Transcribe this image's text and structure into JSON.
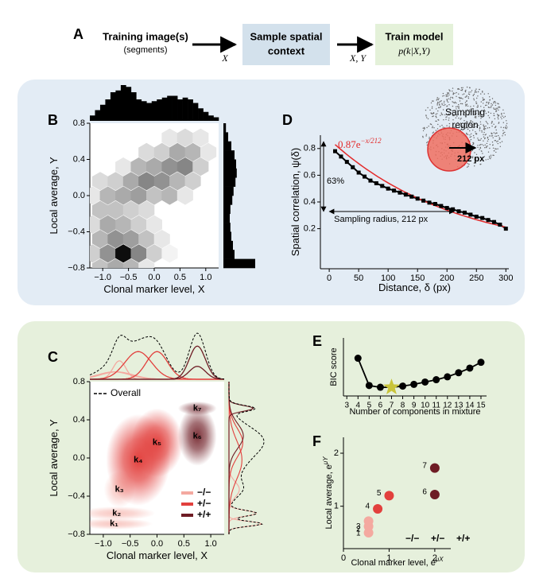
{
  "diagram": {
    "panel": "A",
    "input": "Training image(s)",
    "input_note": "(segments)",
    "edge1": "X",
    "step1": [
      "Sample spatial",
      "context"
    ],
    "edge2": "X, Y",
    "step2": "Train model",
    "step2_formula": "p(k|X,Y)"
  },
  "chart_data": [
    {
      "type": "hexbin",
      "panel": "B",
      "x_label": "Clonal marker level, X",
      "y_label": "Local average, Y",
      "color": "#000000",
      "xlim": [
        -1.25,
        1.25
      ],
      "ylim": [
        -0.8,
        0.8
      ],
      "xticks": [
        {
          "value": -1,
          "label": "−1.0"
        },
        {
          "value": -0.5,
          "label": "−0.5"
        },
        {
          "value": 0,
          "label": "0.0"
        },
        0.5,
        {
          "value": 1,
          "label": "1.0"
        }
      ],
      "yticks": [
        {
          "value": -0.8,
          "label": "−0.8"
        },
        {
          "value": -0.4,
          "label": "−0.4"
        },
        {
          "value": 0,
          "label": "0.0"
        },
        0.4,
        0.8
      ],
      "cells": {
        "x": [
          -1.05,
          -0.75,
          -0.45,
          -0.15,
          -1.2,
          -0.9,
          -0.6,
          -0.3,
          0,
          0.3,
          -1.05,
          -0.75,
          -0.45,
          -0.15,
          0.15,
          -1.2,
          -0.9,
          -0.6,
          -0.3,
          0,
          -1.05,
          -0.75,
          -0.45,
          -0.15,
          -1.2,
          -0.9,
          -0.6,
          -0.3,
          0,
          0.3,
          0.6,
          -1.05,
          -0.75,
          -0.45,
          -0.15,
          0.15,
          0.45,
          0.75,
          -0.6,
          -0.3,
          0,
          0.3,
          0.6,
          0.9,
          -0.15,
          0.15,
          0.45,
          0.75,
          1.05,
          0.3,
          0.6,
          0.9
        ],
        "y": [
          -0.8,
          -0.8,
          -0.8,
          -0.8,
          -0.64,
          -0.64,
          -0.64,
          -0.64,
          -0.64,
          -0.64,
          -0.48,
          -0.48,
          -0.48,
          -0.48,
          -0.48,
          -0.32,
          -0.32,
          -0.32,
          -0.32,
          -0.32,
          -0.16,
          -0.16,
          -0.16,
          -0.16,
          0,
          0,
          0,
          0,
          0,
          0,
          0,
          0.16,
          0.16,
          0.16,
          0.16,
          0.16,
          0.16,
          0.16,
          0.32,
          0.32,
          0.32,
          0.32,
          0.32,
          0.32,
          0.48,
          0.48,
          0.48,
          0.48,
          0.48,
          0.64,
          0.64,
          0.64
        ],
        "values": [
          0.25,
          0.35,
          0.3,
          0.1,
          0.2,
          0.45,
          1,
          0.5,
          0.2,
          0.05,
          0.3,
          0.45,
          0.4,
          0.25,
          0.1,
          0.15,
          0.35,
          0.3,
          0.2,
          0.1,
          0.25,
          0.25,
          0.2,
          0.15,
          0.1,
          0.3,
          0.35,
          0.4,
          0.25,
          0.3,
          0.1,
          0.15,
          0.2,
          0.35,
          0.5,
          0.45,
          0.3,
          0.2,
          0.1,
          0.3,
          0.35,
          0.45,
          0.5,
          0.2,
          0.15,
          0.2,
          0.35,
          0.3,
          0.1,
          0.1,
          0.15,
          0.1
        ]
      },
      "x_hist": {
        "bins": [
          -1.25,
          -1.15,
          -1.05,
          -0.95,
          -0.85,
          -0.75,
          -0.65,
          -0.55,
          -0.45,
          -0.35,
          -0.25,
          -0.15,
          -0.05,
          0.05,
          0.15,
          0.25,
          0.35,
          0.45,
          0.55,
          0.65,
          0.75,
          0.85,
          0.95,
          1.05,
          1.15,
          1.25
        ],
        "counts": [
          0.15,
          0.3,
          0.45,
          0.6,
          0.8,
          0.85,
          1,
          0.95,
          0.8,
          0.6,
          0.55,
          0.5,
          0.55,
          0.6,
          0.65,
          0.7,
          0.7,
          0.6,
          0.65,
          0.6,
          0.5,
          0.35,
          0.25,
          0.15,
          0.1
        ]
      },
      "y_hist": {
        "bins": [
          -0.8,
          -0.7,
          -0.6,
          -0.5,
          -0.4,
          -0.3,
          -0.2,
          -0.1,
          0,
          0.1,
          0.2,
          0.3,
          0.4,
          0.5,
          0.6,
          0.7,
          0.8
        ],
        "counts": [
          1,
          0.35,
          0.3,
          0.25,
          0.22,
          0.2,
          0.22,
          0.28,
          0.32,
          0.38,
          0.42,
          0.4,
          0.35,
          0.25,
          0.15,
          0.08
        ]
      }
    },
    {
      "type": "line",
      "panel": "D",
      "x_label": "Distance, δ  (px)",
      "y_label": "Spatial correlation, ψ(δ)",
      "color": "#000000",
      "xlim": [
        -15,
        305
      ],
      "ylim": [
        -0.1,
        0.9
      ],
      "xticks": [
        0,
        50,
        100,
        150,
        200,
        250,
        300
      ],
      "yticks": [
        0.2,
        0.4,
        0.6,
        0.8
      ],
      "x": [
        10,
        20,
        30,
        40,
        50,
        60,
        70,
        80,
        90,
        100,
        110,
        120,
        130,
        140,
        150,
        160,
        170,
        180,
        190,
        200,
        210,
        220,
        230,
        240,
        250,
        260,
        270,
        280,
        290,
        300
      ],
      "values": [
        0.78,
        0.74,
        0.7,
        0.66,
        0.62,
        0.59,
        0.56,
        0.54,
        0.52,
        0.5,
        0.485,
        0.47,
        0.455,
        0.44,
        0.425,
        0.41,
        0.395,
        0.385,
        0.37,
        0.355,
        0.345,
        0.33,
        0.32,
        0.305,
        0.29,
        0.28,
        0.265,
        0.25,
        0.23,
        0.2
      ],
      "fit": {
        "amplitude": 0.87,
        "scale": 212,
        "color": "#e32b2b",
        "label": "0.87e",
        "label_exponent": "−x/212"
      },
      "annotations": {
        "drop": "63%",
        "radius": "Sampling radius, 212 px",
        "region": [
          "Sampling",
          "region"
        ],
        "region_radius": "212 px"
      }
    },
    {
      "type": "mixture",
      "panel": "C",
      "x_label": "Clonal marker level, X",
      "y_label": "Local average, Y",
      "xlim": [
        -1.25,
        1.25
      ],
      "ylim": [
        -0.8,
        0.8
      ],
      "xticks": [
        {
          "value": -1,
          "label": "−1.0"
        },
        {
          "value": -0.5,
          "label": "−0.5"
        },
        {
          "value": 0,
          "label": "0.0"
        },
        0.5,
        {
          "value": 1,
          "label": "1.0"
        }
      ],
      "yticks": [
        {
          "value": -0.8,
          "label": "−0.8"
        },
        {
          "value": -0.4,
          "label": "−0.4"
        },
        {
          "value": 0,
          "label": "0.0"
        },
        0.4,
        0.8
      ],
      "groups": [
        {
          "name": "−/−",
          "color": "#f4a9a0"
        },
        {
          "name": "+/−",
          "color": "#e2403d"
        },
        {
          "name": "+/+",
          "color": "#6e1c24"
        }
      ],
      "overall": {
        "name": "Overall",
        "color": "#000000"
      },
      "components": [
        {
          "name": "k₁",
          "x": -0.8,
          "y": -0.69,
          "sd_x": 0.3,
          "sd_y": 0.025,
          "weight": 0.08,
          "group": 0
        },
        {
          "name": "k₂",
          "x": -0.75,
          "y": -0.58,
          "sd_x": 0.3,
          "sd_y": 0.03,
          "weight": 0.08,
          "group": 0
        },
        {
          "name": "k₃",
          "x": -0.7,
          "y": -0.33,
          "sd_x": 0.12,
          "sd_y": 0.08,
          "weight": 0.08,
          "group": 0
        },
        {
          "name": "k₄",
          "x": -0.35,
          "y": -0.02,
          "sd_x": 0.25,
          "sd_y": 0.2,
          "weight": 0.25,
          "group": 1
        },
        {
          "name": "k₅",
          "x": 0,
          "y": 0.16,
          "sd_x": 0.2,
          "sd_y": 0.15,
          "weight": 0.2,
          "group": 1
        },
        {
          "name": "k₆",
          "x": 0.75,
          "y": 0.23,
          "sd_x": 0.15,
          "sd_y": 0.13,
          "weight": 0.18,
          "group": 2
        },
        {
          "name": "k₇",
          "x": 0.75,
          "y": 0.52,
          "sd_x": 0.15,
          "sd_y": 0.03,
          "weight": 0.07,
          "group": 2
        }
      ]
    },
    {
      "type": "line",
      "panel": "E",
      "x_label": "Number of components in mixture",
      "y_label": "BIC score",
      "color": "#000000",
      "xlim": [
        2.7,
        15.5
      ],
      "ylim": [
        0,
        1
      ],
      "xticks": [
        3,
        4,
        5,
        6,
        7,
        8,
        9,
        10,
        11,
        12,
        13,
        14,
        15
      ],
      "x": [
        4,
        5,
        6,
        7,
        8,
        9,
        10,
        11,
        12,
        13,
        14,
        15
      ],
      "values": [
        0.65,
        0.18,
        0.15,
        0.15,
        0.17,
        0.2,
        0.24,
        0.28,
        0.33,
        0.4,
        0.48,
        0.58
      ],
      "selected": 7,
      "selected_color": "#c9c43a"
    },
    {
      "type": "scatter",
      "panel": "F",
      "x_label": "Clonal marker level, e",
      "x_label_exponent": "μX",
      "y_label": "Local average, e",
      "y_label_exponent": "μY",
      "xlim": [
        0,
        2.35
      ],
      "ylim": [
        0.2,
        2.3
      ],
      "xticks": [
        0,
        1,
        2
      ],
      "yticks": [
        1,
        2
      ],
      "series": [
        {
          "name": "−/−",
          "color": "#f4a9a0",
          "x": [
            0.55,
            0.55,
            0.55
          ],
          "values": [
            0.5,
            0.62,
            0.72
          ],
          "labels": [
            "1",
            "2",
            "3"
          ]
        },
        {
          "name": "+/−",
          "color": "#e2403d",
          "x": [
            0.75,
            1.0
          ],
          "values": [
            0.95,
            1.2
          ],
          "labels": [
            "4",
            "5"
          ]
        },
        {
          "name": "+/+",
          "color": "#6e1c24",
          "x": [
            2.0,
            2.0
          ],
          "values": [
            1.22,
            1.72
          ],
          "labels": [
            "6",
            "7"
          ]
        }
      ]
    }
  ]
}
